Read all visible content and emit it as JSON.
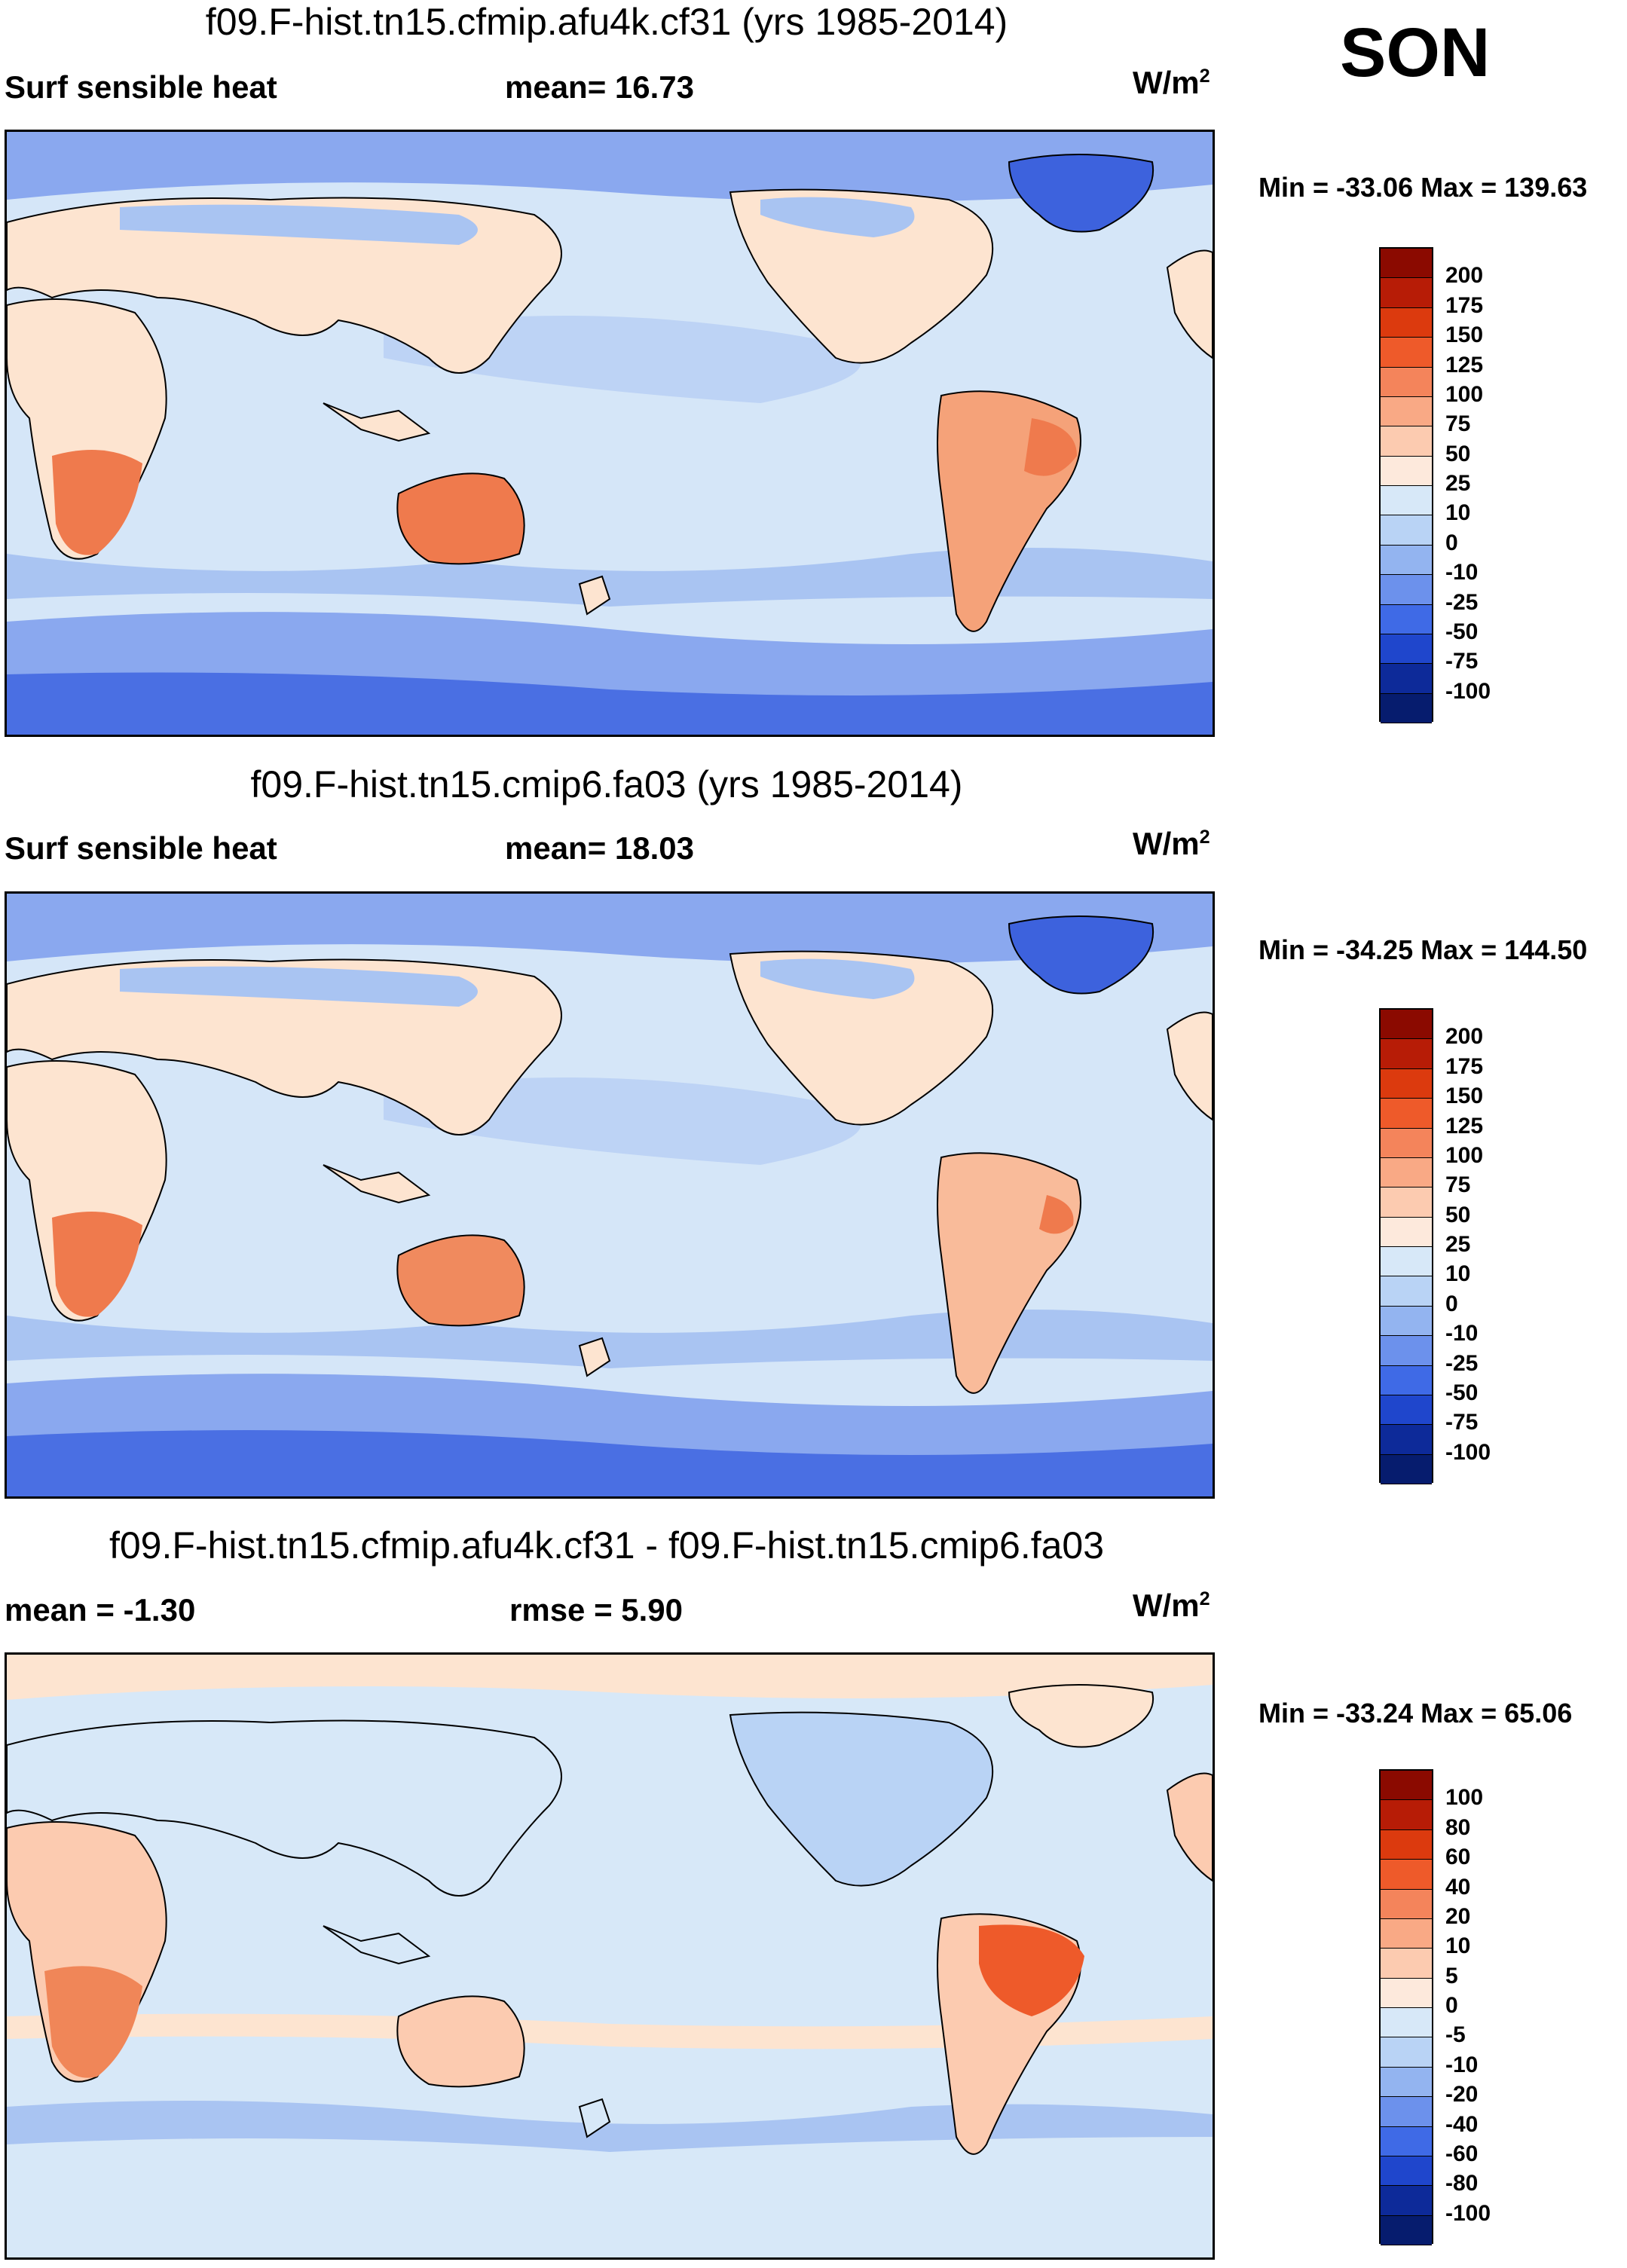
{
  "season": "SON",
  "panels": [
    {
      "title": "f09.F-hist.tn15.cfmip.afu4k.cf31 (yrs 1985-2014)",
      "left_label": "Surf sensible heat",
      "center_label": "mean=  16.73",
      "units_base": "W/m",
      "units_exp": "2",
      "minmax": "Min = -33.06 Max = 139.63",
      "colorbar": {
        "labels": [
          "200",
          "175",
          "150",
          "125",
          "100",
          "75",
          "50",
          "25",
          "10",
          "0",
          "-10",
          "-25",
          "-50",
          "-75",
          "-100"
        ],
        "colors": [
          "#8b0a00",
          "#b71c06",
          "#dc3a0e",
          "#ee5a2a",
          "#f4845b",
          "#f9a985",
          "#fccbb0",
          "#fde9dc",
          "#d7e8f8",
          "#b9d3f5",
          "#93b4f0",
          "#6c91ec",
          "#3f6ae6",
          "#1f46cc",
          "#0d2a99",
          "#061c6e"
        ]
      }
    },
    {
      "title": "f09.F-hist.tn15.cmip6.fa03 (yrs 1985-2014)",
      "left_label": "Surf sensible heat",
      "center_label": "mean=  18.03",
      "units_base": "W/m",
      "units_exp": "2",
      "minmax": "Min = -34.25 Max = 144.50",
      "colorbar": {
        "labels": [
          "200",
          "175",
          "150",
          "125",
          "100",
          "75",
          "50",
          "25",
          "10",
          "0",
          "-10",
          "-25",
          "-50",
          "-75",
          "-100"
        ],
        "colors": [
          "#8b0a00",
          "#b71c06",
          "#dc3a0e",
          "#ee5a2a",
          "#f4845b",
          "#f9a985",
          "#fccbb0",
          "#fde9dc",
          "#d7e8f8",
          "#b9d3f5",
          "#93b4f0",
          "#6c91ec",
          "#3f6ae6",
          "#1f46cc",
          "#0d2a99",
          "#061c6e"
        ]
      }
    },
    {
      "title": "f09.F-hist.tn15.cfmip.afu4k.cf31 - f09.F-hist.tn15.cmip6.fa03",
      "left_label": "mean =  -1.30",
      "center_label": "rmse =   5.90",
      "units_base": "W/m",
      "units_exp": "2",
      "minmax": "Min = -33.24 Max =  65.06",
      "colorbar": {
        "labels": [
          "100",
          "80",
          "60",
          "40",
          "20",
          "10",
          "5",
          "0",
          "-5",
          "-10",
          "-20",
          "-40",
          "-60",
          "-80",
          "-100"
        ],
        "colors": [
          "#8b0a00",
          "#b71c06",
          "#dc3a0e",
          "#ee5a2a",
          "#f4845b",
          "#f9a985",
          "#fccbb0",
          "#fde9dc",
          "#d7e8f8",
          "#b9d3f5",
          "#93b4f0",
          "#6c91ec",
          "#3f6ae6",
          "#1f46cc",
          "#0d2a99",
          "#061c6e"
        ]
      }
    }
  ],
  "palette": {
    "ocean_base": "#d5e6f8",
    "ocean_mid": "#a9c4f2",
    "ocean_deep": "#7f9fee",
    "polar": "#5577e6",
    "land_warm": "#fde4d0",
    "land_hot": "#f5a279",
    "land_hotter": "#ef7a4d",
    "diff_hot": "#f08658",
    "diff_cold": "#9bb5ef"
  }
}
